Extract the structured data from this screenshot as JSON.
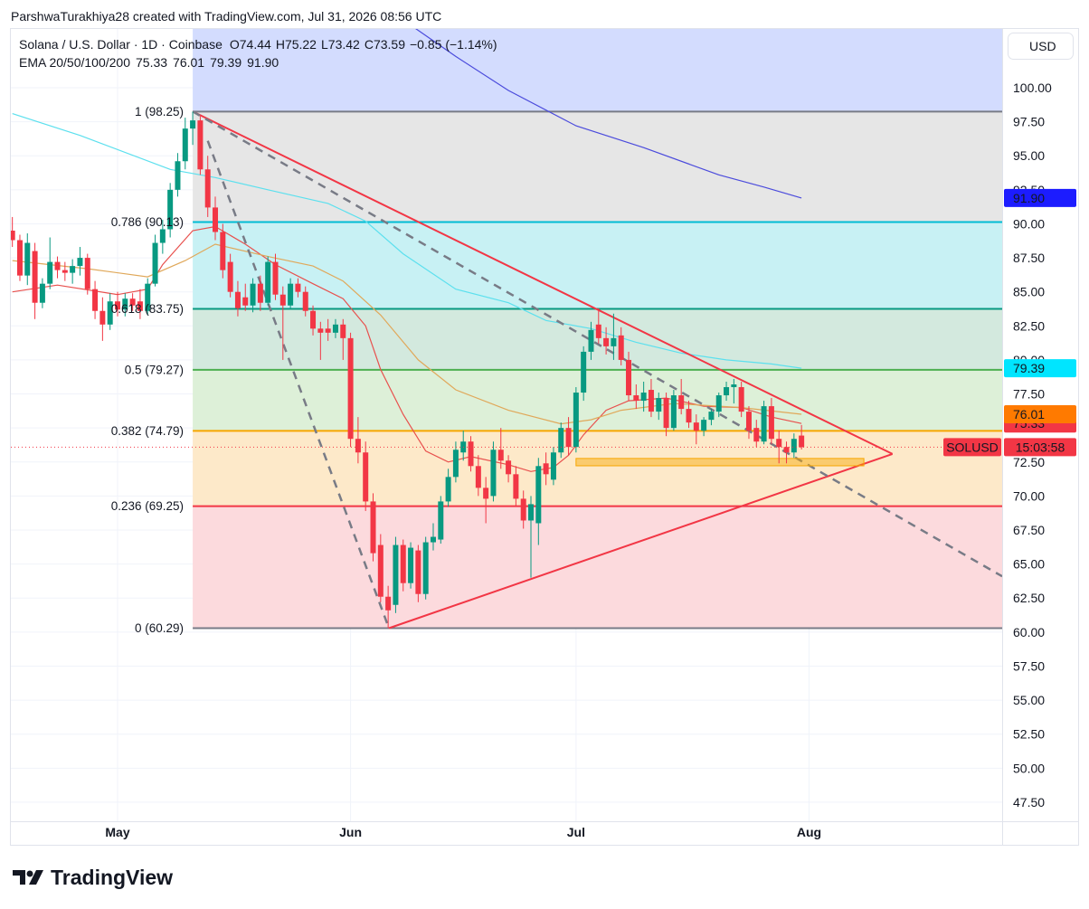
{
  "header": {
    "credit": "ParshwaTurakhiya28 created with TradingView.com, Jul 31, 2026 08:56 UTC"
  },
  "footer": {
    "logo": "TradingView"
  },
  "chart_data": {
    "type": "candlestick",
    "title": "Solana / U.S. Dollar · 1D · Coinbase",
    "ohlc": {
      "labels": [
        "O",
        "H",
        "L",
        "C"
      ],
      "values": [
        74.44,
        75.22,
        73.42,
        73.59
      ],
      "change": "−0.85 (−1.14%)",
      "color": "#f23645"
    },
    "currency": "USD",
    "up_color": "#089981",
    "down_color": "#f23645",
    "x": [
      -14,
      -13,
      -12,
      -11,
      -10,
      -9,
      -8,
      -7,
      -6,
      -5,
      -4,
      -3,
      -2,
      -1,
      0,
      1,
      2,
      3,
      4,
      5,
      6,
      7,
      8,
      9,
      10,
      11,
      12,
      13,
      14,
      15,
      16,
      17,
      18,
      19,
      20,
      21,
      22,
      23,
      24,
      25,
      26,
      27,
      28,
      29,
      30,
      31,
      32,
      33,
      34,
      35,
      36,
      37,
      38,
      39,
      40,
      41,
      42,
      43,
      44,
      45,
      46,
      47,
      48,
      49,
      50,
      51,
      52,
      53,
      54,
      55,
      56,
      57,
      58,
      59,
      60,
      61,
      62,
      63,
      64,
      65,
      66,
      67,
      68,
      69,
      70,
      71,
      72,
      73,
      74,
      75,
      76,
      77,
      78,
      79,
      80,
      81,
      82,
      83,
      84,
      85,
      86,
      87,
      88,
      89,
      90,
      91
    ],
    "open": [
      89.5,
      88.8,
      86.2,
      88.0,
      84.2,
      85.6,
      87.2,
      86.6,
      86.4,
      86.9,
      87.5,
      85.2,
      83.6,
      82.6,
      84.3,
      83.7,
      84.5,
      84.3,
      83.6,
      85.6,
      88.6,
      89.6,
      92.5,
      94.6,
      97.0,
      97.6,
      94.0,
      91.2,
      89.4,
      87.2,
      85.0,
      84.6,
      84.0,
      85.6,
      84.2,
      87.2,
      84.8,
      84.0,
      85.6,
      85.0,
      83.6,
      82.3,
      82.3,
      82.0,
      82.6,
      81.6,
      74.2,
      73.2,
      69.6,
      66.4,
      62.6,
      62.0,
      66.4,
      63.6,
      66.0,
      62.8,
      66.6,
      66.8,
      69.6,
      71.4,
      73.2,
      74.0,
      72.2,
      70.6,
      70.0,
      73.4,
      72.6,
      71.6,
      69.8,
      68.2,
      68.0,
      72.4,
      71.2,
      73.2,
      75.0,
      73.6,
      77.6,
      80.6,
      82.6,
      81.6,
      81.0,
      81.8,
      80.0,
      77.4,
      77.0,
      77.8,
      76.2,
      77.2,
      75.0,
      77.4,
      76.4,
      75.4,
      74.8,
      75.6,
      76.2,
      77.4,
      78.0,
      78.0,
      76.2,
      75.0,
      74.0,
      76.6,
      74.2,
      73.6,
      73.2,
      74.44
    ],
    "high": [
      90.5,
      89.2,
      89.3,
      88.6,
      86.0,
      89.0,
      87.6,
      87.2,
      87.4,
      88.3,
      87.8,
      85.8,
      84.6,
      84.9,
      85.0,
      84.9,
      84.9,
      85.2,
      86.0,
      89.2,
      90.3,
      93.0,
      95.2,
      97.8,
      98.25,
      97.9,
      95.0,
      92.0,
      90.0,
      87.8,
      85.8,
      85.6,
      86.0,
      86.2,
      87.6,
      87.8,
      85.4,
      86.0,
      86.0,
      85.4,
      84.0,
      82.8,
      83.0,
      83.0,
      83.0,
      82.0,
      75.8,
      74.0,
      70.2,
      67.2,
      63.4,
      67.0,
      66.8,
      66.6,
      66.4,
      67.0,
      68.0,
      70.0,
      72.0,
      74.0,
      74.8,
      74.4,
      73.0,
      71.4,
      74.0,
      75.0,
      73.0,
      72.2,
      70.4,
      70.0,
      72.8,
      73.2,
      73.6,
      75.4,
      75.8,
      78.0,
      81.0,
      82.8,
      83.8,
      82.4,
      83.4,
      82.4,
      80.6,
      78.2,
      78.4,
      78.6,
      77.6,
      77.6,
      77.8,
      78.6,
      77.0,
      76.0,
      75.8,
      76.4,
      77.6,
      78.4,
      78.6,
      78.4,
      76.6,
      75.6,
      77.0,
      77.2,
      74.8,
      74.0,
      74.6,
      75.22
    ],
    "low": [
      88.3,
      85.8,
      85.5,
      83.0,
      83.8,
      85.2,
      86.0,
      85.8,
      85.6,
      86.2,
      84.8,
      83.0,
      81.4,
      82.2,
      83.2,
      83.2,
      83.6,
      83.0,
      83.3,
      85.4,
      87.8,
      89.0,
      92.0,
      94.0,
      95.8,
      93.6,
      90.5,
      88.8,
      86.0,
      84.6,
      83.2,
      83.6,
      83.5,
      83.6,
      84.0,
      84.4,
      80.0,
      83.8,
      84.6,
      83.2,
      81.8,
      80.0,
      81.4,
      81.6,
      80.0,
      73.6,
      72.4,
      68.9,
      65.2,
      62.2,
      60.29,
      61.4,
      63.0,
      63.2,
      62.2,
      62.4,
      66.0,
      66.5,
      69.2,
      71.0,
      72.6,
      71.8,
      70.0,
      68.0,
      69.6,
      72.0,
      71.0,
      69.2,
      67.6,
      64.0,
      66.4,
      70.8,
      70.8,
      72.8,
      73.0,
      73.2,
      77.0,
      80.0,
      81.2,
      80.4,
      80.0,
      79.6,
      77.0,
      76.4,
      76.2,
      75.8,
      75.6,
      74.4,
      74.8,
      76.0,
      75.0,
      73.8,
      74.4,
      75.2,
      75.8,
      77.0,
      76.8,
      75.8,
      74.2,
      73.6,
      73.8,
      73.8,
      72.4,
      72.4,
      72.8,
      73.42
    ],
    "close": [
      88.8,
      86.2,
      88.6,
      84.2,
      85.6,
      87.2,
      86.6,
      86.4,
      86.9,
      87.5,
      85.2,
      83.6,
      82.6,
      84.3,
      83.7,
      84.5,
      84.0,
      83.6,
      85.6,
      88.6,
      89.6,
      92.5,
      94.6,
      97.0,
      97.6,
      94.0,
      91.2,
      89.4,
      86.6,
      85.0,
      83.8,
      84.0,
      85.6,
      84.2,
      87.2,
      84.8,
      84.0,
      85.6,
      85.0,
      83.6,
      82.3,
      82.0,
      82.0,
      82.6,
      81.6,
      74.2,
      73.2,
      69.6,
      65.8,
      62.6,
      61.6,
      66.4,
      63.6,
      66.2,
      62.8,
      66.6,
      67.0,
      69.6,
      71.4,
      73.4,
      74.0,
      72.2,
      70.6,
      69.8,
      73.4,
      72.6,
      71.6,
      69.8,
      68.2,
      69.4,
      72.2,
      71.6,
      73.2,
      75.0,
      73.6,
      77.6,
      80.6,
      82.2,
      81.6,
      81.0,
      81.6,
      80.0,
      77.4,
      77.0,
      77.6,
      76.2,
      77.2,
      75.0,
      77.4,
      76.4,
      75.4,
      74.8,
      75.6,
      76.2,
      77.4,
      78.0,
      78.2,
      76.2,
      74.8,
      74.0,
      76.6,
      74.2,
      73.6,
      73.2,
      74.2,
      73.59
    ],
    "xlim": [
      -14.2,
      117.7
    ],
    "xticks": [
      {
        "value": 0,
        "label": "May"
      },
      {
        "value": 31,
        "label": "Jun"
      },
      {
        "value": 61,
        "label": "Jul"
      },
      {
        "value": 92,
        "label": "Aug"
      }
    ],
    "ylim": [
      46.1,
      104.32
    ],
    "yticks": [
      {
        "value": 47.5,
        "label": "47.50"
      },
      {
        "value": 50,
        "label": "50.00"
      },
      {
        "value": 52.5,
        "label": "52.50"
      },
      {
        "value": 55,
        "label": "55.00"
      },
      {
        "value": 57.5,
        "label": "57.50"
      },
      {
        "value": 60,
        "label": "60.00"
      },
      {
        "value": 62.5,
        "label": "62.50"
      },
      {
        "value": 65,
        "label": "65.00"
      },
      {
        "value": 67.5,
        "label": "67.50"
      },
      {
        "value": 70,
        "label": "70.00"
      },
      {
        "value": 72.5,
        "label": "72.50"
      },
      {
        "value": 75,
        "label": "75.00"
      },
      {
        "value": 77.5,
        "label": "77.50"
      },
      {
        "value": 80,
        "label": "80.00"
      },
      {
        "value": 82.5,
        "label": "82.50"
      },
      {
        "value": 85,
        "label": "85.00"
      },
      {
        "value": 87.5,
        "label": "87.50"
      },
      {
        "value": 90,
        "label": "90.00"
      },
      {
        "value": 92.5,
        "label": "92.50"
      },
      {
        "value": 95,
        "label": "95.00"
      },
      {
        "value": 97.5,
        "label": "97.50"
      },
      {
        "value": 100,
        "label": "100.00"
      }
    ],
    "grid": true,
    "ema": {
      "label": "EMA 20/50/100/200",
      "series": [
        {
          "color": "#e8504d",
          "label_color": "#f23645",
          "box_text": "#ffffff",
          "last": 75.33,
          "x": [
            -14,
            -8,
            0,
            4,
            6,
            10,
            13,
            17,
            21,
            26,
            30,
            33,
            35,
            38,
            41,
            44,
            47,
            52,
            55,
            58,
            60,
            62,
            65,
            68,
            73,
            78,
            83,
            87,
            91
          ],
          "values": [
            85.0,
            85.5,
            84.8,
            85.2,
            87.0,
            89.5,
            89.8,
            88.5,
            87.0,
            85.6,
            84.5,
            82.5,
            79.3,
            76.0,
            73.3,
            72.5,
            72.9,
            72.3,
            71.8,
            72.1,
            73.0,
            74.5,
            76.3,
            77.0,
            77.2,
            76.6,
            76.5,
            75.8,
            75.33
          ]
        },
        {
          "color": "#e0a85a",
          "label_color": "#ff7a00",
          "box_text": "#ffffff",
          "last": 76.01,
          "x": [
            -14,
            -4,
            4,
            9,
            13,
            20,
            26,
            30,
            35,
            40,
            45,
            52,
            59,
            63,
            67,
            74,
            83,
            91
          ],
          "values": [
            87.3,
            86.7,
            86.1,
            87.3,
            88.5,
            87.6,
            86.9,
            85.8,
            83.3,
            80.0,
            77.8,
            76.3,
            75.3,
            75.6,
            76.3,
            76.8,
            76.5,
            76.01
          ]
        },
        {
          "color": "#5ce0ee",
          "label_color": "#00e5ff",
          "box_text": "#131722",
          "last": 79.39,
          "x": [
            -14,
            -5,
            7,
            13,
            20,
            28,
            33,
            38,
            45,
            52,
            57,
            63,
            69,
            75,
            81,
            87,
            91
          ],
          "values": [
            98.1,
            96.5,
            94.0,
            93.4,
            92.5,
            91.5,
            90.2,
            87.8,
            85.2,
            84.2,
            82.9,
            82.3,
            81.3,
            80.5,
            80.0,
            79.7,
            79.39
          ]
        },
        {
          "color": "#4b4bdc",
          "label_color": "#1c1cff",
          "box_text": "#ffffff",
          "last": {
            "value": 91.9,
            "label": "91.90"
          },
          "x": [
            39,
            45,
            52,
            61,
            70,
            80,
            86,
            91
          ],
          "values": [
            104.6,
            102.3,
            99.8,
            97.2,
            95.6,
            93.6,
            92.7,
            91.9
          ]
        }
      ]
    },
    "fib": {
      "start": 10,
      "top_fill": "#d3dcfe",
      "levels": [
        {
          "label": "1 (98.25)",
          "value": 98.25,
          "color": "#787b86",
          "fill": "#e6e6e6"
        },
        {
          "label": "0.786 (90.13)",
          "value": 90.13,
          "color": "#00bcd4",
          "fill": "#c8f1f4"
        },
        {
          "label": "0.618 (83.75)",
          "value": 83.75,
          "color": "#089981",
          "fill": "#d3e9de"
        },
        {
          "label": "0.5 (79.27)",
          "value": 79.27,
          "color": "#4caf50",
          "fill": "#ddf0d8"
        },
        {
          "label": "0.382 (74.79)",
          "value": 74.79,
          "color": "#f7a600",
          "fill": "#fde9c9"
        },
        {
          "label": "0.236 (69.25)",
          "value": 69.25,
          "color": "#f23645",
          "fill": "#fcdadd"
        },
        {
          "label": "0 (60.29)",
          "value": 60.29,
          "color": "#787b86"
        }
      ]
    },
    "trendlines": [
      {
        "color": "#f23645",
        "dash": false,
        "x": [
          10,
          103.1
        ],
        "values": [
          98.25,
          73.09
        ]
      },
      {
        "color": "#f23645",
        "dash": false,
        "x": [
          36.1,
          103.1
        ],
        "values": [
          60.29,
          73.09
        ]
      },
      {
        "color": "#787b86",
        "dash": true,
        "x": [
          10,
          117.7
        ],
        "values": [
          98.25,
          64.1
        ]
      },
      {
        "color": "#787b86",
        "dash": true,
        "x": [
          12,
          36.1
        ],
        "values": [
          96.1,
          60.29
        ]
      }
    ],
    "zone": {
      "color": "#f7a600",
      "x": [
        61,
        99.3
      ],
      "values": [
        72.76,
        72.22
      ]
    },
    "price_line": {
      "symbol": "SOLUSD",
      "countdown": "15:03:58",
      "color": "#f23645"
    }
  }
}
